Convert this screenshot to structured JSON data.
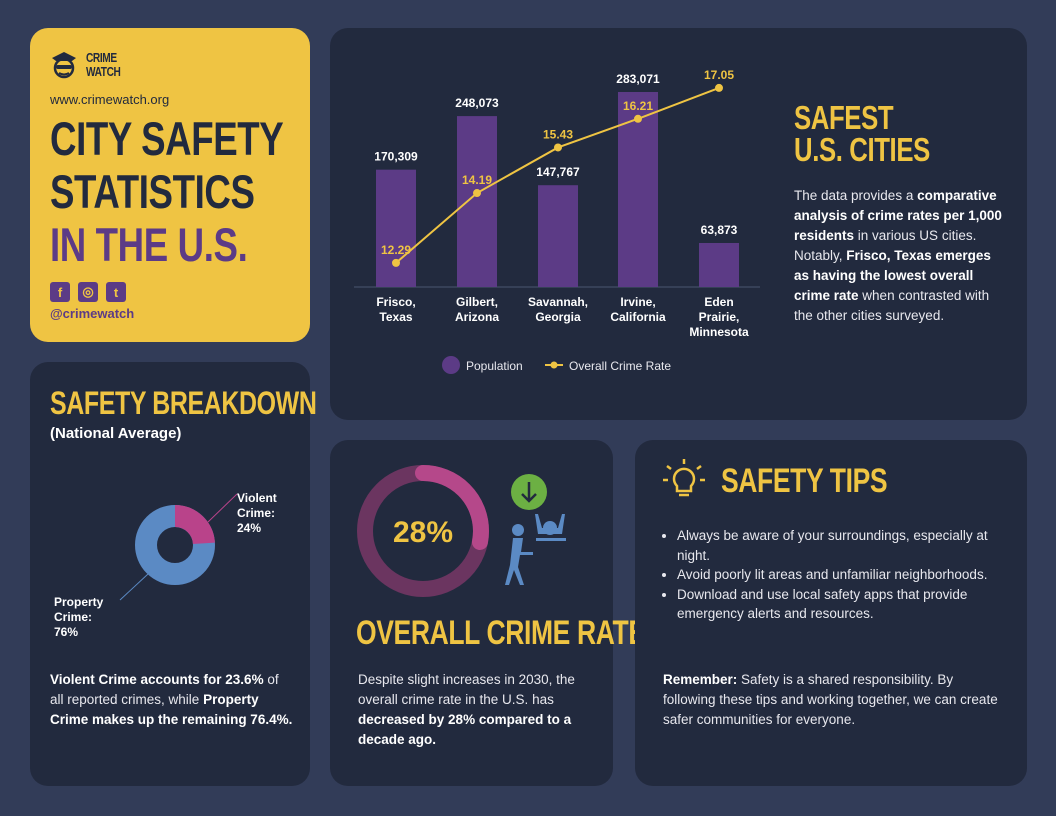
{
  "brand": {
    "logo_text_1": "CRIME",
    "logo_text_2": "WATCH",
    "url": "www.crimewatch.org",
    "handle": "@crimewatch",
    "social": [
      "facebook-icon",
      "instagram-icon",
      "twitter-icon"
    ]
  },
  "title": {
    "line1": "CITY SAFETY",
    "line2": "STATISTICS",
    "line3": "IN THE U.S."
  },
  "colors": {
    "yellow": "#efc443",
    "purple": "#5c3b86",
    "card": "#222a3e",
    "background": "#323c58",
    "violent": "#b9438a",
    "property": "#5b8ac4"
  },
  "safest": {
    "title1": "SAFEST",
    "title2": "U.S. CITIES",
    "d1": "The data provides a ",
    "d2": "comparative analysis of crime rates per 1,000 residents",
    "d3": " in various US cities. Notably, ",
    "d4": "Frisco, Texas emerges as having the lowest overall crime rate",
    "d5": " when contrasted with the other cities surveyed."
  },
  "chart_data": [
    {
      "type": "bar+line",
      "categories": [
        [
          "Frisco,",
          "Texas"
        ],
        [
          "Gilbert,",
          "Arizona"
        ],
        [
          "Savannah,",
          "Georgia"
        ],
        [
          "Irvine,",
          "California"
        ],
        [
          "Eden",
          "Prairie,",
          "Minnesota"
        ]
      ],
      "series": [
        {
          "name": "Population",
          "type": "bar",
          "values": [
            170309,
            248073,
            147767,
            283071,
            63873
          ],
          "labels": [
            "170,309",
            "248,073",
            "147,767",
            "283,071",
            "63,873"
          ]
        },
        {
          "name": "Overall Crime Rate",
          "type": "line",
          "values": [
            12.29,
            14.19,
            15.43,
            16.21,
            17.05
          ],
          "labels": [
            "12.29",
            "14.19",
            "15.43",
            "16.21",
            "17.05"
          ]
        }
      ],
      "legend": "bottom",
      "grid": false
    },
    {
      "type": "pie",
      "title": "SAFETY BREAKDOWN",
      "subtitle": "(National Average)",
      "slices": [
        {
          "name": "Violent Crime",
          "value": 24,
          "label": "Violent Crime: 24%"
        },
        {
          "name": "Property Crime",
          "value": 76,
          "label": "Property Crime: 76%"
        }
      ]
    },
    {
      "type": "gauge",
      "value": 28,
      "label": "28%"
    }
  ],
  "breakdown": {
    "title": "SAFETY BREAKDOWN",
    "subtitle": "(National Average)",
    "violent_l1": "Violent",
    "violent_l2": "Crime:",
    "violent_l3": "24%",
    "property_l1": "Property",
    "property_l2": "Crime:",
    "property_l3": "76%",
    "p1": "Violent Crime accounts for 23.6%",
    "p2": " of all reported crimes, while ",
    "p3": "Property Crime makes up the remaining 76.4%."
  },
  "rate": {
    "value_label": "28%",
    "title": "OVERALL CRIME RATE",
    "p1": "Despite slight increases in 2030, the overall crime rate in the U.S. has ",
    "p2": "decreased by 28% compared to a decade ago."
  },
  "tips": {
    "title": "SAFETY TIPS",
    "items": [
      "Always be aware of your surroundings, especially at night.",
      "Avoid poorly lit areas and unfamiliar neighborhoods.",
      "Download and use local safety apps that provide emergency alerts and resources."
    ],
    "remember_label": "Remember:",
    "remember_text": " Safety is a shared responsibility. By following these tips and working together, we can create safer communities for everyone."
  }
}
